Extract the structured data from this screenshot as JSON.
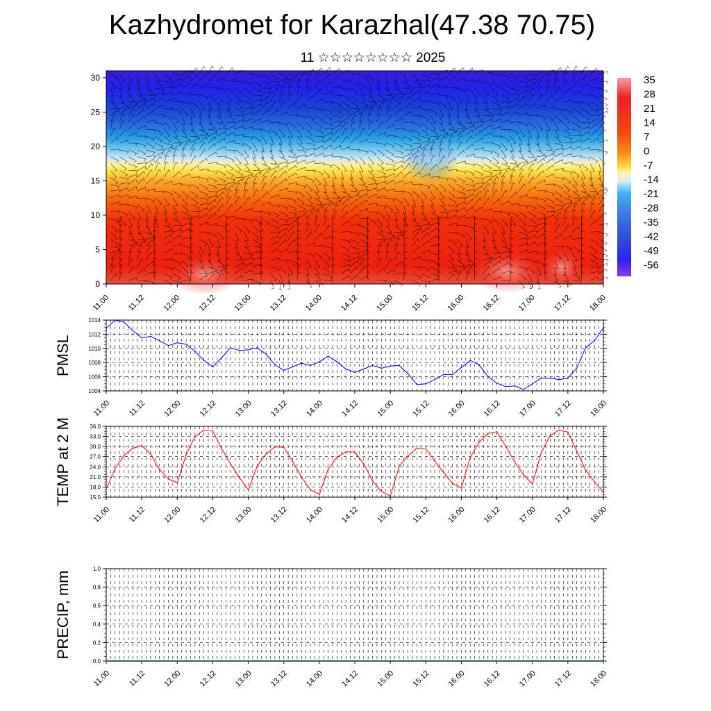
{
  "header": {
    "title": "Kazhydromet for Karazhal(47.38 70.75)",
    "subtitle": "11 ☆☆☆☆☆☆☆☆ 2025"
  },
  "colors": {
    "pmsl_line": "#0000ff",
    "temp_line": "#ff0000",
    "precip_line": "#2e6b3a",
    "grid": "#000000"
  },
  "chart_data": [
    {
      "type": "heatmap",
      "title": "",
      "xlabel": "",
      "ylabel": "",
      "x_tick_labels": [
        "11.00",
        "11.12",
        "12.00",
        "12.12",
        "13.00",
        "13.12",
        "14.00",
        "14.12",
        "15.00",
        "15.12",
        "16.00",
        "16.12",
        "17.00",
        "17.12",
        "18.00"
      ],
      "y_ticks": [
        0,
        5,
        10,
        15,
        20,
        25,
        30
      ],
      "ylim": [
        0,
        31
      ],
      "colorbar_labels": [
        "35",
        "28",
        "21",
        "14",
        "7",
        "0",
        "-7",
        "-14",
        "-21",
        "-28",
        "-35",
        "-42",
        "-49",
        "-56"
      ],
      "colorbar_range": [
        -63,
        42
      ],
      "overlay": "wind barbs",
      "description_values": {
        "note": "temperature field: warm (red) near surface, cold (blue) aloft, transition near level 15-18"
      }
    },
    {
      "type": "line",
      "ylabel": "PMSL",
      "ylim": [
        1004,
        1014
      ],
      "y_ticks": [
        "1004",
        "1006",
        "1008",
        "1010",
        "1012",
        "1014"
      ],
      "x_tick_labels": [
        "11.00",
        "11.12",
        "12.00",
        "12.12",
        "13.00",
        "13.12",
        "14.00",
        "14.12",
        "15.00",
        "15.12",
        "16.00",
        "16.12",
        "17.00",
        "17.12",
        "18.00"
      ],
      "x_range": [
        0,
        56
      ],
      "series": [
        {
          "values": [
            1012.8,
            1014.0,
            1013.7,
            1012.5,
            1011.5,
            1011.7,
            1011.1,
            1010.4,
            1010.8,
            1010.6,
            1009.6,
            1008.3,
            1007.4,
            1008.7,
            1010.1,
            1009.7,
            1009.8,
            1010.1,
            1009.2,
            1007.7,
            1006.9,
            1007.4,
            1007.9,
            1007.6,
            1008.1,
            1008.9,
            1008.1,
            1007.1,
            1006.6,
            1007.1,
            1007.6,
            1007.2,
            1007.5,
            1007.6,
            1006.4,
            1004.9,
            1005.0,
            1005.6,
            1006.3,
            1006.3,
            1007.3,
            1008.3,
            1007.7,
            1006.0,
            1005.1,
            1004.6,
            1004.7,
            1004.2,
            1005.0,
            1005.8,
            1005.8,
            1005.6,
            1005.8,
            1007.2,
            1010.1,
            1011.1,
            1012.9
          ]
        }
      ]
    },
    {
      "type": "line",
      "ylabel": "TEMP at 2 M",
      "ylim": [
        15.0,
        36.0
      ],
      "y_ticks": [
        "15.0",
        "18.0",
        "21.0",
        "24.0",
        "27.0",
        "30.0",
        "33.0",
        "36.0"
      ],
      "x_tick_labels": [
        "11.00",
        "11.12",
        "12.00",
        "12.12",
        "13.00",
        "13.12",
        "14.00",
        "14.12",
        "15.00",
        "15.12",
        "16.00",
        "16.12",
        "17.00",
        "17.12",
        "18.00"
      ],
      "x_range": [
        0,
        56
      ],
      "series": [
        {
          "values": [
            17.3,
            23.5,
            27.4,
            29.5,
            30.3,
            27.8,
            23.2,
            20.4,
            19.3,
            27.6,
            33.0,
            34.8,
            34.6,
            29.4,
            24.9,
            20.8,
            17.2,
            24.2,
            27.8,
            29.9,
            29.8,
            25.6,
            20.9,
            17.2,
            15.8,
            23.3,
            26.9,
            28.4,
            28.4,
            24.9,
            19.8,
            16.7,
            15.3,
            24.1,
            27.3,
            29.5,
            29.3,
            25.7,
            22.3,
            19.1,
            17.7,
            26.8,
            31.3,
            33.9,
            34.4,
            30.1,
            25.5,
            21.6,
            18.9,
            28.2,
            33.3,
            34.8,
            34.3,
            28.7,
            23.1,
            19.6,
            16.4
          ]
        }
      ]
    },
    {
      "type": "line",
      "ylabel": "PRECIP, mm",
      "ylim": [
        0.0,
        1.0
      ],
      "y_ticks": [
        "0.0",
        "0.2",
        "0.4",
        "0.6",
        "0.8",
        "1.0"
      ],
      "x_tick_labels": [
        "11.00",
        "11.12",
        "12.00",
        "12.12",
        "13.00",
        "13.12",
        "14.00",
        "14.12",
        "15.00",
        "15.12",
        "16.00",
        "16.12",
        "17.00",
        "17.12",
        "18.00"
      ],
      "x_range": [
        0,
        56
      ],
      "series": [
        {
          "values": [
            0,
            0,
            0,
            0,
            0,
            0,
            0,
            0,
            0,
            0,
            0,
            0,
            0,
            0,
            0,
            0,
            0,
            0,
            0,
            0,
            0,
            0,
            0,
            0,
            0,
            0,
            0,
            0,
            0,
            0,
            0,
            0,
            0,
            0,
            0,
            0,
            0,
            0,
            0,
            0,
            0,
            0,
            0,
            0,
            0,
            0,
            0,
            0,
            0,
            0,
            0,
            0,
            0,
            0,
            0,
            0,
            0
          ]
        }
      ]
    }
  ]
}
